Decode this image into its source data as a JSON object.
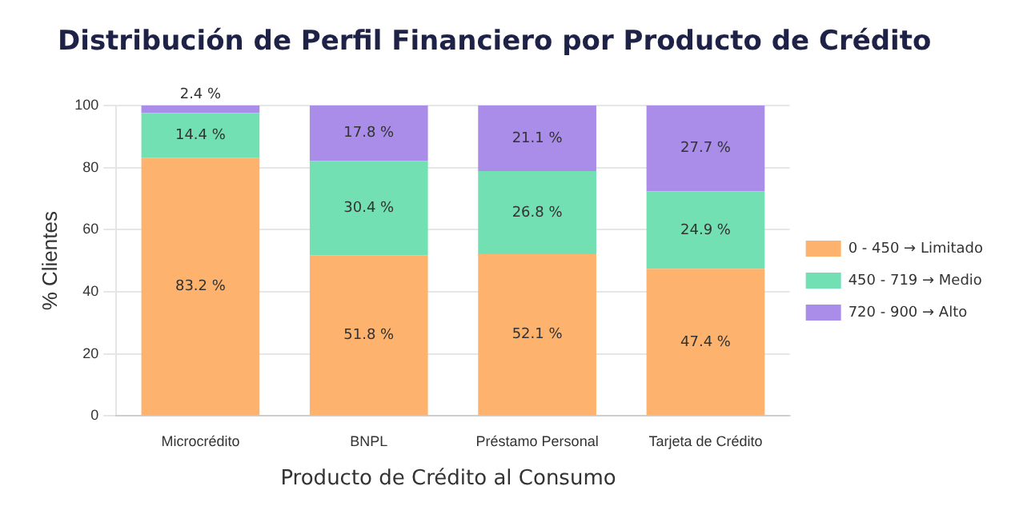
{
  "chart_data": {
    "type": "bar",
    "title": "Distribución de Perfil Financiero por Producto de Crédito",
    "xlabel": "Producto de Crédito al Consumo",
    "ylabel": "% Clientes",
    "categories": [
      "Microcrédito",
      "BNPL",
      "Préstamo Personal",
      "Tarjeta de Crédito"
    ],
    "stacked": true,
    "ylim": [
      0,
      100
    ],
    "yticks": [
      0,
      20,
      40,
      60,
      80,
      100
    ],
    "grid": "y",
    "legend": "right",
    "series": [
      {
        "name": "0 - 450 → Limitado",
        "color": "#fdb36e",
        "values": [
          83.2,
          51.8,
          52.1,
          47.4
        ],
        "value_labels": [
          "83.2 %",
          "51.8 %",
          "52.1 %",
          "47.4 %"
        ]
      },
      {
        "name": "450 - 719 → Medio",
        "color": "#72e0b2",
        "values": [
          14.4,
          30.4,
          26.8,
          24.9
        ],
        "value_labels": [
          "14.4 %",
          "30.4 %",
          "26.8 %",
          "24.9 %"
        ]
      },
      {
        "name": "720 - 900 → Alto",
        "color": "#a98de8",
        "values": [
          2.4,
          17.8,
          21.1,
          27.7
        ],
        "value_labels": [
          "2.4 %",
          "17.8 %",
          "21.1 %",
          "27.7 %"
        ]
      }
    ]
  }
}
